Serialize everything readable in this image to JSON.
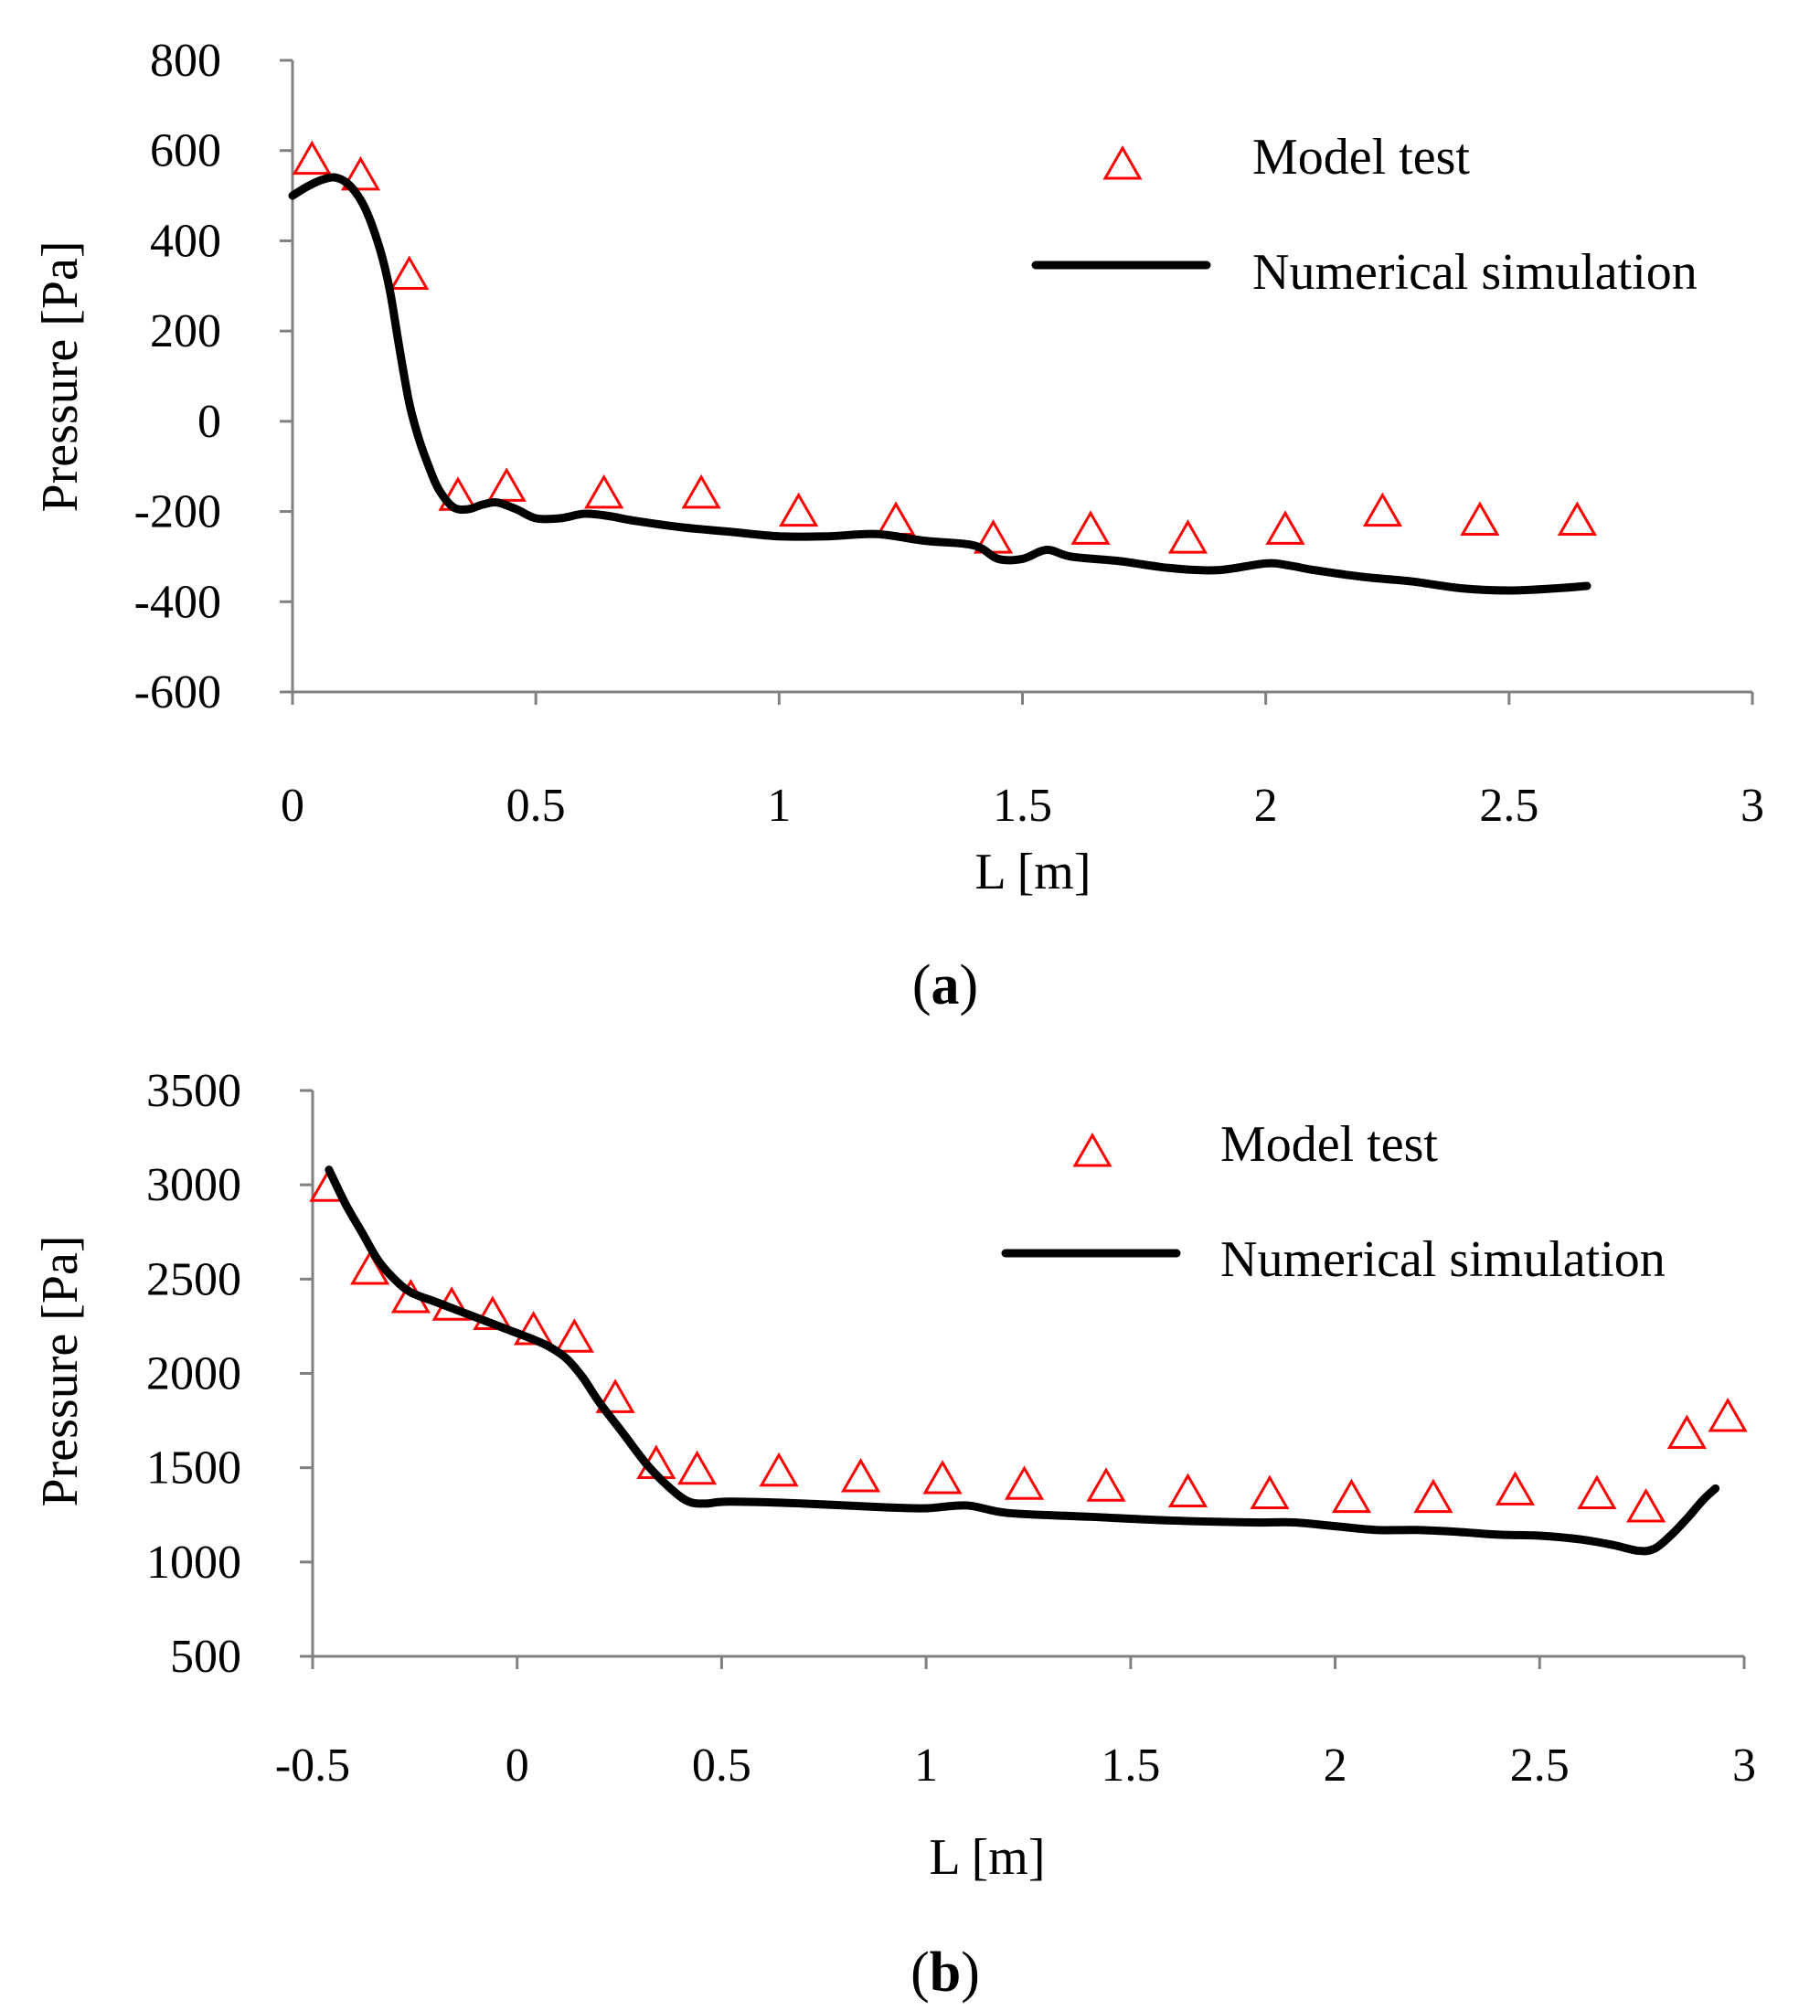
{
  "chart_data": [
    {
      "type": "line",
      "panel_label": "a",
      "xlabel": "L [m]",
      "ylabel": "Pressure [Pa]",
      "xlim": [
        0,
        3
      ],
      "ylim": [
        -600,
        800
      ],
      "x_ticks": [
        "0",
        "0.5",
        "1",
        "1.5",
        "2",
        "2.5",
        "3"
      ],
      "x_tick_values": [
        0,
        0.5,
        1,
        1.5,
        2,
        2.5,
        3
      ],
      "y_ticks": [
        "800",
        "600",
        "400",
        "200",
        "0",
        "-200",
        "-400",
        "-600"
      ],
      "y_tick_values": [
        800,
        600,
        400,
        200,
        0,
        -200,
        -400,
        -600
      ],
      "legend": {
        "position": "top-right",
        "entries": [
          "Model test",
          "Numerical simulation"
        ]
      },
      "colors": {
        "model_test": "#ff0000",
        "numerical_simulation": "#000000"
      },
      "series": [
        {
          "name": "Model test",
          "kind": "markers",
          "marker": "triangle-open",
          "x": [
            0.04,
            0.14,
            0.24,
            0.34,
            0.44,
            0.64,
            0.84,
            1.04,
            1.24,
            1.44,
            1.64,
            1.84,
            2.04,
            2.24,
            2.44,
            2.64
          ],
          "y": [
            580,
            545,
            325,
            -165,
            -145,
            -160,
            -160,
            -200,
            -220,
            -260,
            -240,
            -260,
            -240,
            -200,
            -220,
            -220
          ]
        },
        {
          "name": "Numerical simulation",
          "kind": "line",
          "x": [
            0,
            0.03,
            0.06,
            0.09,
            0.12,
            0.15,
            0.18,
            0.2,
            0.22,
            0.24,
            0.26,
            0.28,
            0.3,
            0.33,
            0.36,
            0.39,
            0.42,
            0.46,
            0.5,
            0.55,
            0.6,
            0.65,
            0.7,
            0.8,
            0.9,
            1.0,
            1.1,
            1.2,
            1.3,
            1.4,
            1.45,
            1.5,
            1.55,
            1.6,
            1.7,
            1.8,
            1.9,
            2.0,
            2.05,
            2.1,
            2.2,
            2.3,
            2.4,
            2.5,
            2.6,
            2.66
          ],
          "y": [
            500,
            520,
            535,
            540,
            520,
            470,
            380,
            290,
            160,
            40,
            -40,
            -100,
            -150,
            -190,
            -195,
            -185,
            -180,
            -195,
            -215,
            -215,
            -205,
            -210,
            -220,
            -235,
            -245,
            -255,
            -255,
            -250,
            -265,
            -275,
            -305,
            -305,
            -285,
            -300,
            -310,
            -325,
            -330,
            -315,
            -320,
            -330,
            -345,
            -355,
            -370,
            -375,
            -370,
            -365
          ]
        }
      ]
    },
    {
      "type": "line",
      "panel_label": "b",
      "xlabel": "L [m]",
      "ylabel": "Pressure [Pa]",
      "xlim": [
        -0.5,
        3
      ],
      "ylim": [
        500,
        3500
      ],
      "x_ticks": [
        "-0.5",
        "0",
        "0.5",
        "1",
        "1.5",
        "2",
        "2.5",
        "3"
      ],
      "x_tick_values": [
        -0.5,
        0,
        0.5,
        1,
        1.5,
        2,
        2.5,
        3
      ],
      "y_ticks": [
        "3500",
        "3000",
        "2500",
        "2000",
        "1500",
        "1000",
        "500"
      ],
      "y_tick_values": [
        3500,
        3000,
        2500,
        2000,
        1500,
        1000,
        500
      ],
      "legend": {
        "position": "top-right",
        "entries": [
          "Model test",
          "Numerical simulation"
        ]
      },
      "colors": {
        "model_test": "#ff0000",
        "numerical_simulation": "#000000"
      },
      "series": [
        {
          "name": "Model test",
          "kind": "markers",
          "marker": "triangle-open",
          "x": [
            -0.46,
            -0.36,
            -0.26,
            -0.16,
            -0.06,
            0.04,
            0.14,
            0.24,
            0.34,
            0.44,
            0.64,
            0.84,
            1.04,
            1.24,
            1.44,
            1.64,
            1.84,
            2.04,
            2.24,
            2.44,
            2.64,
            2.76,
            2.86,
            2.96
          ],
          "y": [
            2990,
            2550,
            2400,
            2360,
            2310,
            2230,
            2190,
            1870,
            1520,
            1490,
            1480,
            1450,
            1440,
            1410,
            1400,
            1370,
            1360,
            1340,
            1340,
            1380,
            1360,
            1290,
            1680,
            1770
          ]
        },
        {
          "name": "Numerical simulation",
          "kind": "line",
          "x": [
            -0.46,
            -0.42,
            -0.38,
            -0.34,
            -0.3,
            -0.26,
            -0.2,
            -0.14,
            -0.08,
            -0.02,
            0.04,
            0.08,
            0.12,
            0.16,
            0.2,
            0.26,
            0.32,
            0.38,
            0.42,
            0.46,
            0.52,
            0.7,
            0.9,
            1.0,
            1.1,
            1.2,
            1.4,
            1.6,
            1.8,
            1.9,
            2.0,
            2.1,
            2.2,
            2.3,
            2.4,
            2.5,
            2.6,
            2.68,
            2.74,
            2.78,
            2.82,
            2.86,
            2.9,
            2.93
          ],
          "y": [
            3080,
            2900,
            2750,
            2600,
            2500,
            2430,
            2380,
            2330,
            2280,
            2230,
            2180,
            2140,
            2080,
            1980,
            1850,
            1680,
            1510,
            1380,
            1320,
            1310,
            1320,
            1310,
            1290,
            1285,
            1300,
            1260,
            1240,
            1220,
            1210,
            1210,
            1190,
            1170,
            1170,
            1160,
            1145,
            1140,
            1120,
            1090,
            1060,
            1070,
            1140,
            1230,
            1330,
            1390
          ]
        }
      ]
    }
  ]
}
